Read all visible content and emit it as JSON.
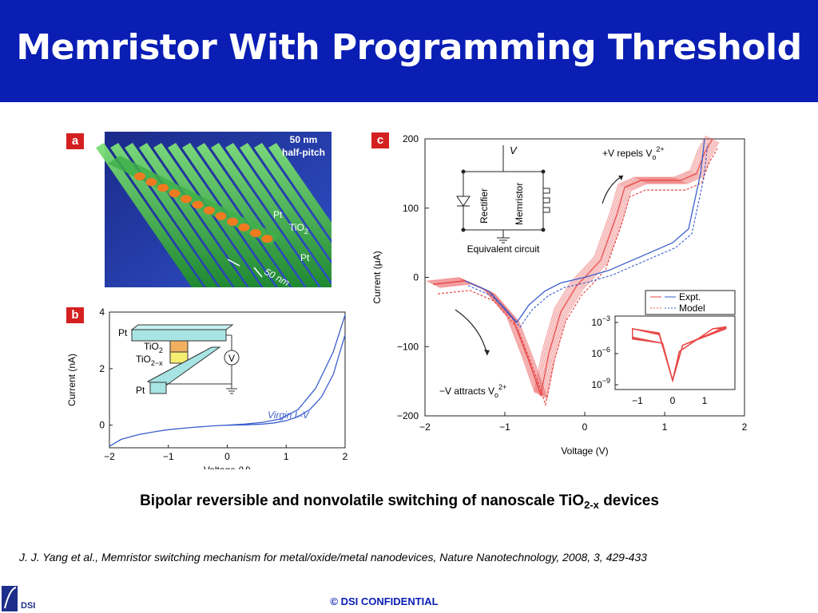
{
  "slide": {
    "title": "Memristor With Programming Threshold",
    "caption_main": "Bipolar reversible and nonvolatile switching of nanoscale TiO",
    "caption_sub": "2-x",
    "caption_end": " devices",
    "reference": "J. J. Yang et al., Memristor switching mechanism for metal/oxide/metal nanodevices, Nature Nanotechnology, 2008, 3, 429-433",
    "footer": "© DSI CONFIDENTIAL",
    "logo_text": "DSI"
  },
  "panel_a": {
    "letter": "a",
    "scale_label_1": "50 nm",
    "scale_label_2": "half-pitch",
    "label_pt_top": "Pt",
    "label_tio2": "TiO",
    "label_tio2_sub": "2",
    "label_pt_bottom": "Pt",
    "label_50nm": "50 nm"
  },
  "panel_b": {
    "letter": "b",
    "inset_labels": {
      "pt_top": "Pt",
      "tio2": "TiO",
      "tio2_sub": "2",
      "tio2x": "TiO",
      "tio2x_sub": "2−x",
      "pt_bottom": "Pt",
      "meter": "V"
    },
    "legend": "Virgin I–V",
    "colors": {
      "curve": "#3a5fcd"
    }
  },
  "panel_c": {
    "letter": "c",
    "circuit_labels": {
      "v": "V",
      "rectifier": "Rectifier",
      "memristor": "Memristor",
      "equivalent": "Equivalent circuit"
    },
    "annot_repels": "+V repels V",
    "annot_attracts": "−V attracts V",
    "annot_sub": "o",
    "annot_sup": "2+",
    "legend_expt": "Expt.",
    "legend_model": "Model",
    "colors": {
      "expt": "#e84848",
      "model": "#3a5fcd"
    },
    "inset": {
      "y_ticks": [
        "10",
        "10",
        "10"
      ],
      "y_exps": [
        "−3",
        "−6",
        "−9"
      ],
      "x_ticks": [
        "−1",
        "0",
        "1"
      ]
    }
  },
  "chart_data": [
    {
      "type": "line",
      "title": "",
      "xlabel": "Voltage (V)",
      "ylabel": "Current (nA)",
      "xlim": [
        -2,
        2
      ],
      "ylim": [
        -0.8,
        4
      ],
      "x_ticks": [
        "−2",
        "−1",
        "0",
        "1",
        "2"
      ],
      "y_ticks": [
        "0",
        "2",
        "4"
      ],
      "series": [
        {
          "name": "Virgin I–V",
          "x": [
            -2,
            -1.8,
            -1.5,
            -1.2,
            -1,
            -0.6,
            -0.2,
            0,
            0.3,
            0.6,
            0.9,
            1.2,
            1.5,
            1.8,
            2
          ],
          "y": [
            -0.75,
            -0.5,
            -0.33,
            -0.22,
            -0.16,
            -0.08,
            -0.02,
            0,
            0.04,
            0.1,
            0.22,
            0.55,
            1.3,
            2.6,
            3.9
          ]
        },
        {
          "x": [
            2,
            1.8,
            1.6,
            1.4,
            1.2,
            1.0,
            0.8,
            0.6,
            0.3,
            0
          ],
          "y": [
            3.2,
            1.8,
            1.0,
            0.55,
            0.3,
            0.16,
            0.08,
            0.04,
            0.01,
            0
          ]
        }
      ]
    },
    {
      "type": "line",
      "title": "",
      "xlabel": "Voltage (V)",
      "ylabel": "Current (μA)",
      "xlim": [
        -2,
        2
      ],
      "ylim": [
        -200,
        200
      ],
      "x_ticks": [
        "−2",
        "−1",
        "0",
        "1",
        "2"
      ],
      "y_ticks": [
        "−200",
        "−100",
        "0",
        "100",
        "200"
      ],
      "series": [
        {
          "name": "Expt.",
          "x": [
            -1.9,
            -1.5,
            -1.2,
            -0.9,
            -0.7,
            -0.55,
            -0.45,
            -0.3,
            -0.1,
            0,
            0.2,
            0.4,
            0.5,
            0.7,
            1.0,
            1.2,
            1.4,
            1.5,
            1.6
          ],
          "y": [
            -10,
            -5,
            -20,
            -60,
            -120,
            -170,
            -110,
            -50,
            -12,
            0,
            25,
            90,
            130,
            140,
            140,
            140,
            150,
            180,
            200
          ]
        },
        {
          "name": "Model",
          "x": [
            -1.5,
            -1.2,
            -1.0,
            -0.85,
            -0.7,
            -0.5,
            -0.3,
            0,
            0.3,
            0.6,
            0.9,
            1.1,
            1.3,
            1.45,
            1.5
          ],
          "y": [
            -5,
            -20,
            -45,
            -65,
            -40,
            -20,
            -8,
            0,
            10,
            25,
            40,
            50,
            70,
            150,
            200
          ]
        }
      ]
    }
  ]
}
